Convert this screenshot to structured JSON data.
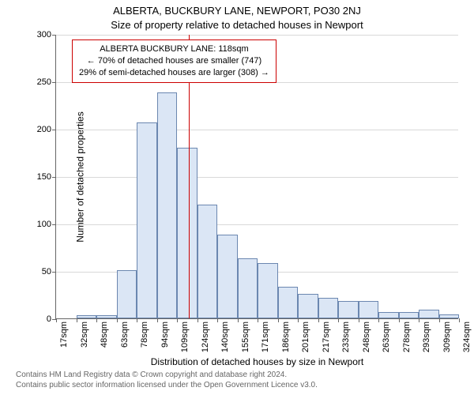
{
  "titles": {
    "main": "ALBERTA, BUCKBURY LANE, NEWPORT, PO30 2NJ",
    "sub": "Size of property relative to detached houses in Newport"
  },
  "axes": {
    "ylabel": "Number of detached properties",
    "xlabel": "Distribution of detached houses by size in Newport",
    "ylim": [
      0,
      300
    ],
    "ytick_step": 50,
    "yticks": [
      0,
      50,
      100,
      150,
      200,
      250,
      300
    ],
    "xtick_labels": [
      "17sqm",
      "32sqm",
      "48sqm",
      "63sqm",
      "78sqm",
      "94sqm",
      "109sqm",
      "124sqm",
      "140sqm",
      "155sqm",
      "171sqm",
      "186sqm",
      "201sqm",
      "217sqm",
      "233sqm",
      "248sqm",
      "263sqm",
      "278sqm",
      "293sqm",
      "309sqm",
      "324sqm"
    ]
  },
  "chart": {
    "type": "histogram",
    "values": [
      0,
      3,
      3,
      51,
      207,
      238,
      180,
      120,
      88,
      63,
      58,
      33,
      26,
      22,
      18,
      18,
      7,
      7,
      9,
      4
    ],
    "bar_fill": "#dbe6f5",
    "bar_border": "#6b87b0",
    "grid_color": "#d9d9d9",
    "plot_bg": "#ffffff",
    "reference_line": {
      "value_sqm": 118,
      "color": "#cc0000"
    }
  },
  "info_box": {
    "line1": "ALBERTA BUCKBURY LANE: 118sqm",
    "line2": "← 70% of detached houses are smaller (747)",
    "line3": "29% of semi-detached houses are larger (308) →"
  },
  "footnote": {
    "line1": "Contains HM Land Registry data © Crown copyright and database right 2024.",
    "line2": "Contains public sector information licensed under the Open Government Licence v3.0."
  },
  "style": {
    "title_fontsize": 13,
    "tick_fontsize": 11,
    "label_fontsize": 12,
    "footnote_color": "#666666",
    "ref_box_border": "#cc0000"
  }
}
